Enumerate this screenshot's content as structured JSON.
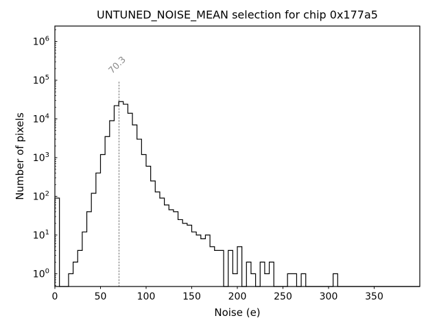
{
  "chart_data": {
    "type": "histogram",
    "title": "UNTUNED_NOISE_MEAN selection for chip 0x177a5",
    "xlabel": "Noise (e)",
    "ylabel": "Number of pixels",
    "xlim": [
      0,
      400
    ],
    "yscale": "log",
    "ylim_log10": [
      -0.33,
      6.4
    ],
    "xticks": [
      0,
      50,
      100,
      150,
      200,
      250,
      300,
      350
    ],
    "ytick_exponents": [
      0,
      1,
      2,
      3,
      4,
      5,
      6
    ],
    "bin_start": 0,
    "bin_width": 5,
    "counts": [
      90,
      0,
      0,
      1,
      2,
      4,
      12,
      40,
      120,
      400,
      1200,
      3500,
      9000,
      22000,
      28000,
      24000,
      14000,
      7000,
      3000,
      1200,
      600,
      250,
      130,
      90,
      60,
      45,
      40,
      25,
      20,
      18,
      12,
      10,
      8,
      10,
      5,
      4,
      4,
      0,
      4,
      1,
      5,
      0,
      2,
      1,
      0,
      2,
      1,
      2,
      0,
      0,
      0,
      1,
      1,
      0,
      1,
      0,
      0,
      0,
      0,
      0,
      0,
      1,
      0,
      0,
      0,
      0,
      0,
      0,
      0,
      0,
      0,
      0,
      0,
      0,
      0,
      0,
      0,
      0,
      0,
      0
    ],
    "line_color": "#000000",
    "frame_color": "#000000",
    "annotation": {
      "x": 70.3,
      "label": "70.3",
      "top_log10": 5.0,
      "color": "#8a8a8a",
      "style": "dotted",
      "rotation_deg": -45
    }
  }
}
